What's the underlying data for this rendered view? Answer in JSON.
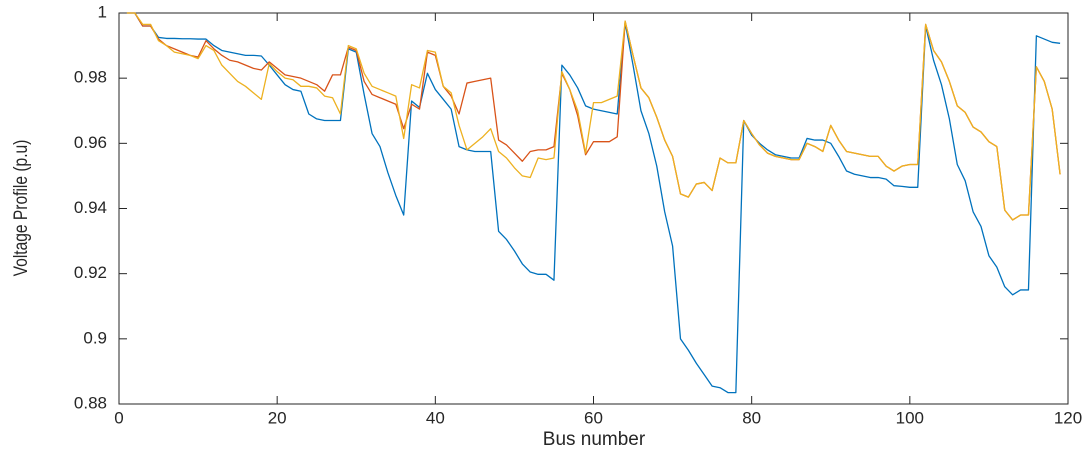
{
  "chart_data": {
    "type": "line",
    "xlabel": "Bus number",
    "ylabel": "Voltage Profile (p.u)",
    "xlim": [
      0,
      120
    ],
    "xticks": [
      0,
      20,
      40,
      60,
      80,
      100,
      120
    ],
    "ylim": [
      0.88,
      1
    ],
    "yticks": [
      0.88,
      0.9,
      0.92,
      0.94,
      0.96,
      0.98,
      1
    ],
    "x": [
      1,
      2,
      3,
      4,
      5,
      6,
      7,
      8,
      9,
      10,
      11,
      12,
      13,
      14,
      15,
      16,
      17,
      18,
      19,
      20,
      21,
      22,
      23,
      24,
      25,
      26,
      27,
      28,
      29,
      30,
      31,
      32,
      33,
      34,
      35,
      36,
      37,
      38,
      39,
      40,
      41,
      42,
      43,
      44,
      45,
      46,
      47,
      48,
      49,
      50,
      51,
      52,
      53,
      54,
      55,
      56,
      57,
      58,
      59,
      60,
      61,
      62,
      63,
      64,
      65,
      66,
      67,
      68,
      69,
      70,
      71,
      72,
      73,
      74,
      75,
      76,
      77,
      78,
      79,
      80,
      81,
      82,
      83,
      84,
      85,
      86,
      87,
      88,
      89,
      90,
      91,
      92,
      93,
      94,
      95,
      96,
      97,
      98,
      99,
      100,
      101,
      102,
      103,
      104,
      105,
      106,
      107,
      108,
      109,
      110,
      111,
      112,
      113,
      114,
      115,
      116,
      117,
      118,
      119
    ],
    "series": [
      {
        "color": "#0072BD",
        "values": [
          1,
          1,
          0.996,
          0.996,
          0.9925,
          0.9922,
          0.9922,
          0.9921,
          0.9921,
          0.992,
          0.992,
          0.99,
          0.9885,
          0.988,
          0.9875,
          0.987,
          0.987,
          0.9868,
          0.984,
          0.981,
          0.978,
          0.9765,
          0.976,
          0.969,
          0.9675,
          0.967,
          0.967,
          0.967,
          0.989,
          0.988,
          0.975,
          0.963,
          0.959,
          0.951,
          0.944,
          0.938,
          0.973,
          0.971,
          0.9815,
          0.9765,
          0.9735,
          0.9705,
          0.959,
          0.958,
          0.9575,
          0.9575,
          0.9575,
          0.933,
          0.9305,
          0.927,
          0.923,
          0.9205,
          0.9198,
          0.9198,
          0.918,
          0.984,
          0.981,
          0.977,
          0.9715,
          0.9705,
          0.97,
          0.9695,
          0.969,
          0.997,
          0.984,
          0.97,
          0.963,
          0.953,
          0.939,
          0.9285,
          0.9,
          0.8965,
          0.8925,
          0.889,
          0.8855,
          0.885,
          0.8835,
          0.8835,
          0.967,
          0.9625,
          0.96,
          0.958,
          0.9565,
          0.956,
          0.9555,
          0.9555,
          0.9615,
          0.961,
          0.961,
          0.96,
          0.956,
          0.9515,
          0.9505,
          0.95,
          0.9495,
          0.9495,
          0.949,
          0.947,
          0.9468,
          0.9465,
          0.9465,
          0.996,
          0.9855,
          0.978,
          0.9675,
          0.9535,
          0.9485,
          0.939,
          0.9345,
          0.9255,
          0.922,
          0.916,
          0.9135,
          0.915,
          0.915,
          0.993,
          0.992,
          0.991,
          0.9907
        ]
      },
      {
        "color": "#D95319",
        "values": [
          1,
          1,
          0.996,
          0.996,
          0.992,
          0.99,
          0.989,
          0.988,
          0.987,
          0.9865,
          0.9915,
          0.989,
          0.987,
          0.9855,
          0.985,
          0.984,
          0.983,
          0.9825,
          0.985,
          0.983,
          0.981,
          0.9805,
          0.98,
          0.979,
          0.978,
          0.976,
          0.981,
          0.981,
          0.9895,
          0.9885,
          0.979,
          0.975,
          0.974,
          0.973,
          0.972,
          0.9645,
          0.972,
          0.9705,
          0.988,
          0.987,
          0.9775,
          0.9745,
          0.969,
          0.9785,
          0.979,
          0.9795,
          0.98,
          0.961,
          0.9595,
          0.957,
          0.9545,
          0.9575,
          0.958,
          0.958,
          0.959,
          0.9815,
          0.9765,
          0.9685,
          0.9565,
          0.9605,
          0.9605,
          0.9605,
          0.962,
          0.9975,
          0.987,
          0.977,
          0.974,
          0.968,
          0.961,
          0.956,
          0.9445,
          0.9435,
          0.9475,
          0.948,
          0.9455,
          0.9555,
          0.954,
          0.954,
          0.967,
          0.963,
          0.9595,
          0.957,
          0.956,
          0.9555,
          0.955,
          0.955,
          0.96,
          0.959,
          0.9575,
          0.9655,
          0.961,
          0.9575,
          0.957,
          0.9565,
          0.956,
          0.956,
          0.953,
          0.9515,
          0.953,
          0.9535,
          0.9535,
          0.9965,
          0.9885,
          0.985,
          0.979,
          0.9715,
          0.9695,
          0.965,
          0.9635,
          0.9605,
          0.959,
          0.9395,
          0.9365,
          0.938,
          0.938,
          0.9835,
          0.979,
          0.9705,
          0.9505
        ]
      },
      {
        "color": "#EDB120",
        "values": [
          1,
          1,
          0.9965,
          0.9965,
          0.9915,
          0.99,
          0.988,
          0.9875,
          0.987,
          0.986,
          0.99,
          0.9885,
          0.984,
          0.9815,
          0.979,
          0.9775,
          0.9755,
          0.9735,
          0.9845,
          0.982,
          0.98,
          0.9795,
          0.9775,
          0.9775,
          0.977,
          0.9745,
          0.974,
          0.969,
          0.99,
          0.989,
          0.9815,
          0.9775,
          0.9765,
          0.9755,
          0.9745,
          0.9615,
          0.978,
          0.977,
          0.9885,
          0.988,
          0.9775,
          0.9755,
          0.9655,
          0.958,
          0.96,
          0.962,
          0.9645,
          0.9575,
          0.9555,
          0.9525,
          0.95,
          0.9495,
          0.9555,
          0.955,
          0.9555,
          0.982,
          0.9765,
          0.97,
          0.957,
          0.9725,
          0.9725,
          0.9735,
          0.9745,
          0.9975,
          0.987,
          0.977,
          0.974,
          0.968,
          0.961,
          0.956,
          0.9445,
          0.9435,
          0.9475,
          0.948,
          0.9455,
          0.9555,
          0.954,
          0.954,
          0.967,
          0.963,
          0.9595,
          0.957,
          0.956,
          0.9555,
          0.955,
          0.955,
          0.96,
          0.959,
          0.9575,
          0.9655,
          0.961,
          0.9575,
          0.957,
          0.9565,
          0.956,
          0.956,
          0.953,
          0.9515,
          0.953,
          0.9535,
          0.9535,
          0.9965,
          0.9885,
          0.985,
          0.979,
          0.9715,
          0.9695,
          0.965,
          0.9635,
          0.9605,
          0.959,
          0.9395,
          0.9365,
          0.938,
          0.938,
          0.9835,
          0.979,
          0.9705,
          0.9505
        ]
      }
    ]
  }
}
